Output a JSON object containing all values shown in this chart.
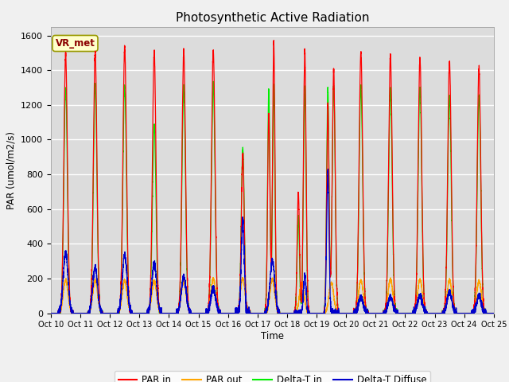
{
  "title": "Photosynthetic Active Radiation",
  "ylabel": "PAR (umol/m2/s)",
  "xlabel": "Time",
  "xlim": [
    0,
    15
  ],
  "ylim": [
    0,
    1650
  ],
  "yticks": [
    0,
    200,
    400,
    600,
    800,
    1000,
    1200,
    1400,
    1600
  ],
  "xtick_labels": [
    "Oct 10",
    "Oct 11",
    "Oct 12",
    "Oct 13",
    "Oct 14",
    "Oct 15",
    "Oct 16",
    "Oct 17",
    "Oct 18",
    "Oct 19",
    "Oct 20",
    "Oct 21",
    "Oct 22",
    "Oct 23",
    "Oct 24",
    "Oct 25"
  ],
  "plot_bg": "#dcdcdc",
  "fig_bg": "#f0f0f0",
  "grid_color": "#ffffff",
  "annotation_text": "VR_met",
  "annotation_bg": "#ffffcc",
  "annotation_border": "#999900",
  "colors": {
    "par_in": "#ff0000",
    "par_out": "#ffa500",
    "delta_t_in": "#00ee00",
    "delta_t_diffuse": "#0000cc"
  },
  "legend_labels": [
    "PAR in",
    "PAR out",
    "Delta-T in",
    "Delta-T Diffuse"
  ],
  "days": 15,
  "par_in_max": [
    1490,
    1500,
    1530,
    1500,
    1500,
    1510,
    910,
    1560,
    1510,
    1400,
    1500,
    1490,
    1465,
    1445,
    1415
  ],
  "par_out_max": [
    190,
    190,
    190,
    185,
    185,
    200,
    200,
    195,
    175,
    175,
    190,
    195,
    195,
    190,
    185
  ],
  "delta_t_in_max": [
    1295,
    1320,
    1310,
    1085,
    1305,
    1325,
    950,
    1310,
    1300,
    1310,
    1305,
    1295,
    1295,
    1250,
    1250
  ],
  "delta_t_diff_max": [
    350,
    265,
    340,
    285,
    215,
    145,
    540,
    300,
    220,
    810,
    90,
    95,
    100,
    120,
    100
  ],
  "sigma": 0.08,
  "par_sigma": 0.06,
  "daytime_start": 0.25,
  "daytime_end": 0.75
}
